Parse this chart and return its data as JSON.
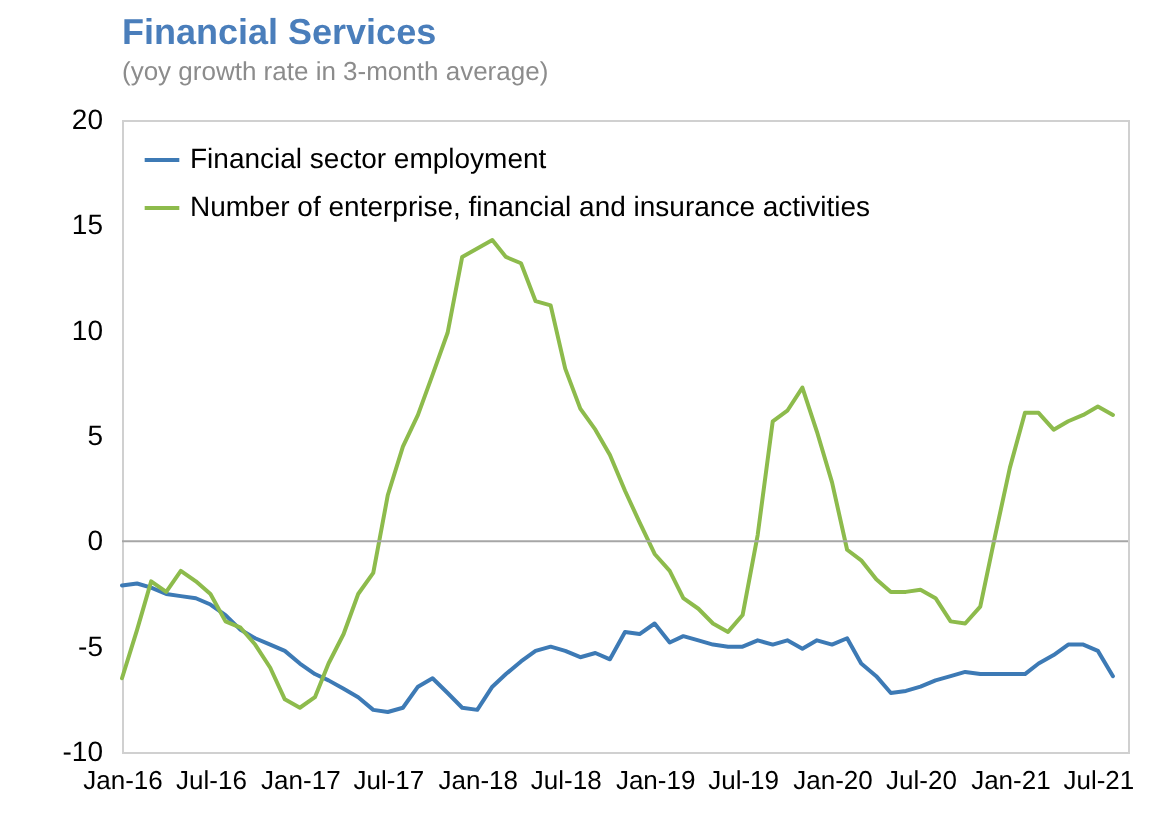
{
  "chart_data": {
    "type": "line",
    "title": "Financial Services",
    "subtitle": "(yoy growth rate in 3-month average)",
    "x": [
      "2016-01",
      "2016-02",
      "2016-03",
      "2016-04",
      "2016-05",
      "2016-06",
      "2016-07",
      "2016-08",
      "2016-09",
      "2016-10",
      "2016-11",
      "2016-12",
      "2017-01",
      "2017-02",
      "2017-03",
      "2017-04",
      "2017-05",
      "2017-06",
      "2017-07",
      "2017-08",
      "2017-09",
      "2017-10",
      "2017-11",
      "2017-12",
      "2018-01",
      "2018-02",
      "2018-03",
      "2018-04",
      "2018-05",
      "2018-06",
      "2018-07",
      "2018-08",
      "2018-09",
      "2018-10",
      "2018-11",
      "2018-12",
      "2019-01",
      "2019-02",
      "2019-03",
      "2019-04",
      "2019-05",
      "2019-06",
      "2019-07",
      "2019-08",
      "2019-09",
      "2019-10",
      "2019-11",
      "2019-12",
      "2020-01",
      "2020-02",
      "2020-03",
      "2020-04",
      "2020-05",
      "2020-06",
      "2020-07",
      "2020-08",
      "2020-09",
      "2020-10",
      "2020-11",
      "2020-12",
      "2021-01",
      "2021-02",
      "2021-03",
      "2021-04",
      "2021-05",
      "2021-06",
      "2021-07",
      "2021-08"
    ],
    "series": [
      {
        "name": "Financial sector employment",
        "color": "#3d7ab5",
        "values": [
          -2.1,
          -2.0,
          -2.2,
          -2.5,
          -2.6,
          -2.7,
          -3.0,
          -3.5,
          -4.2,
          -4.6,
          -4.9,
          -5.2,
          -5.8,
          -6.3,
          -6.6,
          -7.0,
          -7.4,
          -8.0,
          -8.1,
          -7.9,
          -6.9,
          -6.5,
          -7.2,
          -7.9,
          -8.0,
          -6.9,
          -6.3,
          -5.7,
          -5.2,
          -5.0,
          -5.2,
          -5.5,
          -5.3,
          -5.6,
          -4.3,
          -4.4,
          -3.9,
          -4.8,
          -4.5,
          -4.7,
          -4.9,
          -5.0,
          -5.0,
          -4.7,
          -4.9,
          -4.7,
          -5.1,
          -4.7,
          -4.9,
          -4.6,
          -5.8,
          -6.4,
          -7.2,
          -7.1,
          -6.9,
          -6.6,
          -6.4,
          -6.2,
          -6.3,
          -6.3,
          -6.3,
          -6.3,
          -5.8,
          -5.4,
          -4.9,
          -4.9,
          -5.2,
          -6.4
        ]
      },
      {
        "name": "Number of enterprise, financial and insurance activities",
        "color": "#8dbb4c",
        "values": [
          -6.5,
          -4.2,
          -1.9,
          -2.4,
          -1.4,
          -1.9,
          -2.5,
          -3.8,
          -4.1,
          -4.9,
          -6.0,
          -7.5,
          -7.9,
          -7.4,
          -5.8,
          -4.4,
          -2.5,
          -1.5,
          2.2,
          4.5,
          6.0,
          7.9,
          9.9,
          13.5,
          13.9,
          14.3,
          13.5,
          13.2,
          11.4,
          11.2,
          8.2,
          6.3,
          5.3,
          4.1,
          2.4,
          0.9,
          -0.6,
          -1.4,
          -2.7,
          -3.2,
          -3.9,
          -4.3,
          -3.5,
          0.3,
          5.7,
          6.2,
          7.3,
          5.2,
          2.8,
          -0.4,
          -0.9,
          -1.8,
          -2.4,
          -2.4,
          -2.3,
          -2.7,
          -3.8,
          -3.9,
          -3.1,
          0.2,
          3.5,
          6.1,
          6.1,
          5.3,
          5.7,
          6.0,
          6.4,
          6.0
        ]
      }
    ],
    "xlim": [
      "2016-01",
      "2021-09"
    ],
    "xticks": [
      {
        "value": "2016-01",
        "label": "Jan-16"
      },
      {
        "value": "2016-07",
        "label": "Jul-16"
      },
      {
        "value": "2017-01",
        "label": "Jan-17"
      },
      {
        "value": "2017-07",
        "label": "Jul-17"
      },
      {
        "value": "2018-01",
        "label": "Jan-18"
      },
      {
        "value": "2018-07",
        "label": "Jul-18"
      },
      {
        "value": "2019-01",
        "label": "Jan-19"
      },
      {
        "value": "2019-07",
        "label": "Jul-19"
      },
      {
        "value": "2020-01",
        "label": "Jan-20"
      },
      {
        "value": "2020-07",
        "label": "Jul-20"
      },
      {
        "value": "2021-01",
        "label": "Jan-21"
      },
      {
        "value": "2021-07",
        "label": "Jul-21"
      }
    ],
    "ylim": [
      -10,
      20
    ],
    "yticks": [
      -10,
      -5,
      0,
      5,
      10,
      15,
      20
    ],
    "ref_lines": [
      {
        "axis": "y",
        "value": 0,
        "color": "#a6a6a6"
      }
    ],
    "legend": "top left",
    "grid": false,
    "line_style": "solid",
    "marker": "none"
  }
}
